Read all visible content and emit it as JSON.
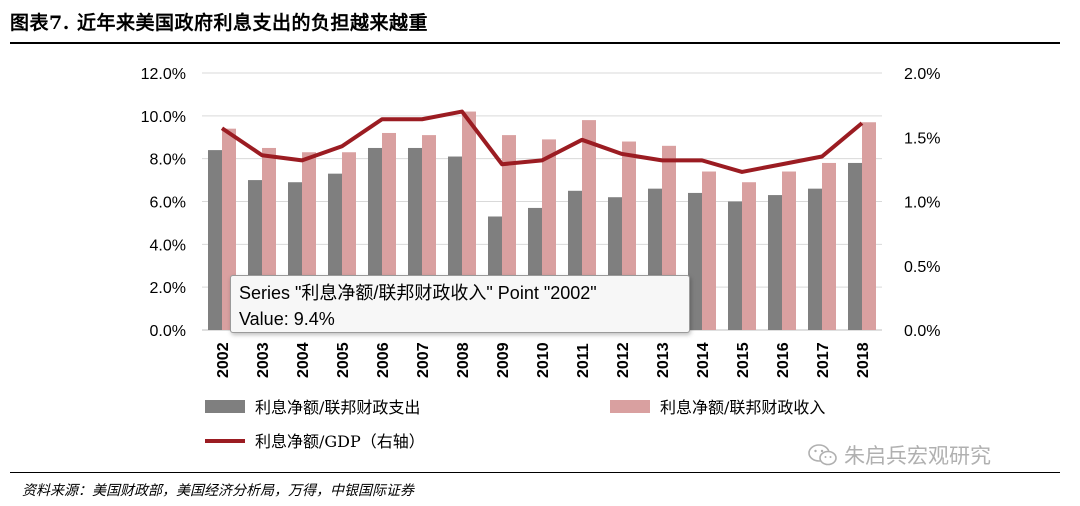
{
  "title": "图表7. 近年来美国政府利息支出的负担越来越重",
  "source": "资料来源：美国财政部，美国经济分析局，万得，中银国际证券",
  "watermark": "朱启兵宏观研究",
  "tooltip": {
    "line1": "Series \"利息净额/联邦财政收入\" Point \"2002\"",
    "line2": "Value: 9.4%"
  },
  "colors": {
    "gray": "#7f7f7f",
    "pink": "#d9a0a0",
    "red": "#9b1c22"
  },
  "chart_data": {
    "type": "bar",
    "categories": [
      "2002",
      "2003",
      "2004",
      "2005",
      "2006",
      "2007",
      "2008",
      "2009",
      "2010",
      "2011",
      "2012",
      "2013",
      "2014",
      "2015",
      "2016",
      "2017",
      "2018"
    ],
    "left_ylim": [
      0,
      12
    ],
    "right_ylim": [
      0,
      2
    ],
    "left_ticks": [
      "12.0%",
      "10.0%",
      "8.0%",
      "6.0%",
      "4.0%",
      "2.0%",
      "0.0%"
    ],
    "right_ticks": [
      "2.0%",
      "1.5%",
      "1.0%",
      "0.5%",
      "0.0%"
    ],
    "series": [
      {
        "name": "利息净额/联邦财政支出",
        "axis": "left",
        "kind": "bar",
        "values": [
          8.4,
          7.0,
          6.9,
          7.3,
          8.5,
          8.5,
          8.1,
          5.3,
          5.7,
          6.5,
          6.2,
          6.6,
          6.4,
          6.0,
          6.3,
          6.6,
          7.8
        ]
      },
      {
        "name": "利息净额/联邦财政收入",
        "axis": "left",
        "kind": "bar",
        "values": [
          9.4,
          8.5,
          8.3,
          8.3,
          9.2,
          9.1,
          10.2,
          9.1,
          8.9,
          9.8,
          8.8,
          8.6,
          7.4,
          6.9,
          7.4,
          7.8,
          9.7
        ]
      },
      {
        "name": "利息净额/GDP（右轴）",
        "axis": "right",
        "kind": "line",
        "values": [
          1.57,
          1.36,
          1.32,
          1.43,
          1.64,
          1.64,
          1.7,
          1.29,
          1.32,
          1.48,
          1.37,
          1.32,
          1.32,
          1.23,
          1.29,
          1.35,
          1.61
        ]
      }
    ],
    "legend_position": "bottom",
    "grid": true
  }
}
